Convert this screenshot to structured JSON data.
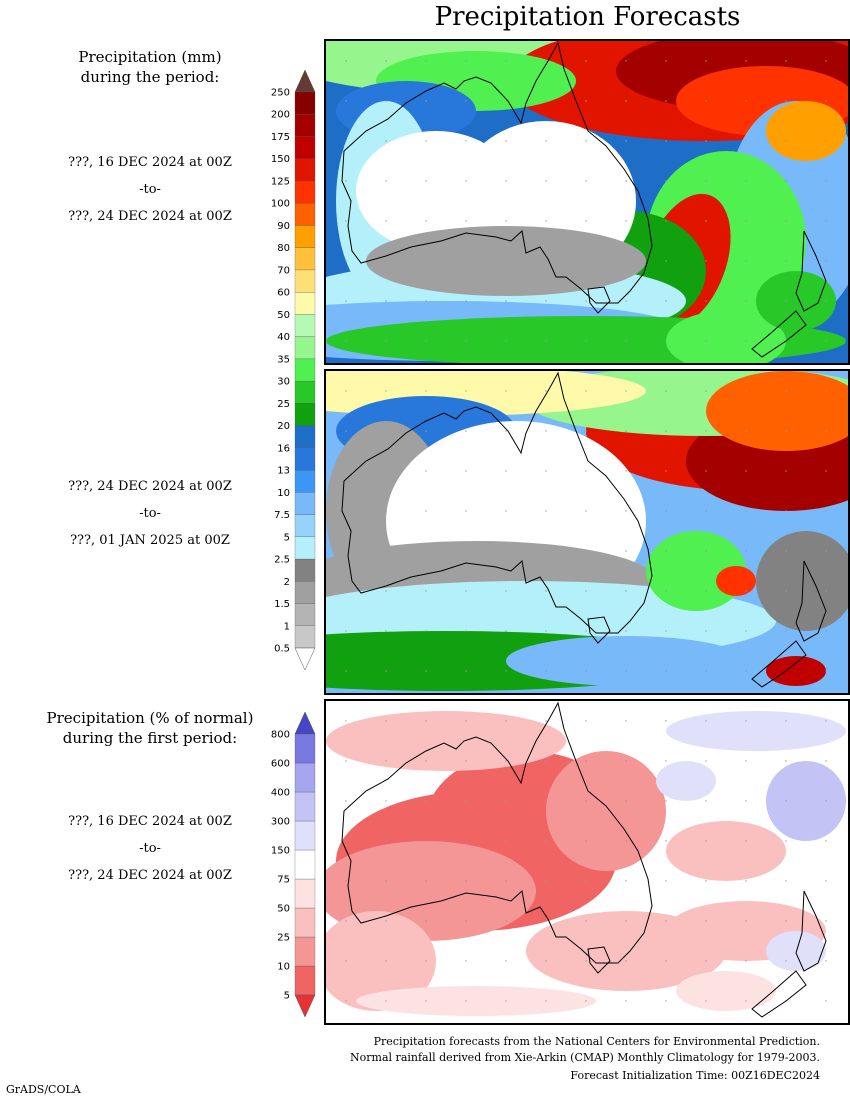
{
  "title": "Precipitation Forecasts",
  "legend1": {
    "heading1": "Precipitation (mm)",
    "heading2": "during the period:",
    "levels": [
      "0.5",
      "1",
      "1.5",
      "2",
      "2.5",
      "5",
      "7.5",
      "10",
      "13",
      "16",
      "20",
      "25",
      "30",
      "35",
      "40",
      "50",
      "60",
      "70",
      "80",
      "90",
      "100",
      "125",
      "150",
      "175",
      "200",
      "250"
    ],
    "colors": [
      "#ffffff",
      "#c8c8c8",
      "#b4b4b4",
      "#a0a0a0",
      "#828282",
      "#b4f0fa",
      "#96d2fa",
      "#78b9fa",
      "#3c96f5",
      "#2878dc",
      "#1e6ec8",
      "#10a010",
      "#28c828",
      "#50f050",
      "#96f58c",
      "#b4fab4",
      "#fffaaa",
      "#ffe078",
      "#ffc03c",
      "#ffa000",
      "#ff6000",
      "#ff3200",
      "#e11400",
      "#c00000",
      "#a50000",
      "#870000",
      "#643b32"
    ]
  },
  "legend2": {
    "heading1": "Precipitation (% of normal)",
    "heading2": "during the first period:",
    "levels": [
      "5",
      "10",
      "25",
      "50",
      "75",
      "150",
      "300",
      "400",
      "600",
      "800"
    ],
    "colors": [
      "#e63232",
      "#f06464",
      "#f59696",
      "#fac0c0",
      "#fde2e2",
      "#ffffff",
      "#e0e0fa",
      "#c3c3f5",
      "#a5a5f0",
      "#7878e0",
      "#4646c8"
    ]
  },
  "periods": [
    {
      "start": "???, 16 DEC 2024 at 00Z",
      "sep": "-to-",
      "end": "???, 24 DEC 2024 at 00Z"
    },
    {
      "start": "???, 24 DEC 2024 at 00Z",
      "sep": "-to-",
      "end": "???, 01 JAN 2025 at 00Z"
    },
    {
      "start": "???, 16 DEC 2024 at 00Z",
      "sep": "-to-",
      "end": "???, 24 DEC 2024 at 00Z"
    }
  ],
  "footer": {
    "line1": "Precipitation forecasts from the National Centers for Environmental Prediction.",
    "line2": "Normal rainfall derived from Xie-Arkin (CMAP) Monthly Climatology for 1979-2003.",
    "line3": "Forecast Initialization Time: 00Z16DEC2024"
  },
  "credit": "GrADS/COLA"
}
